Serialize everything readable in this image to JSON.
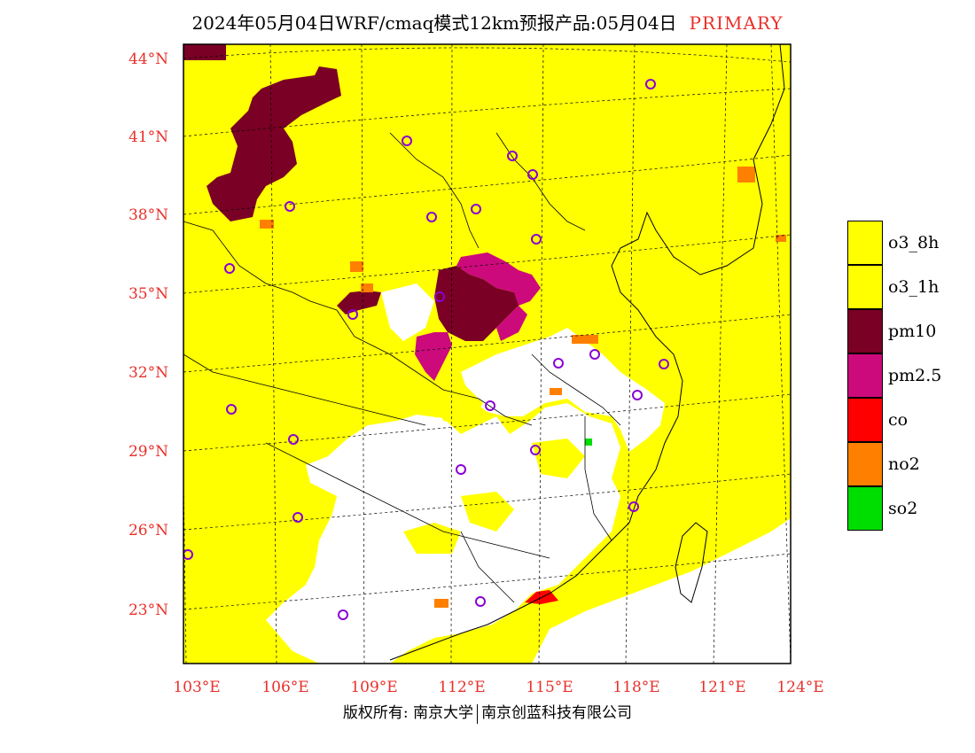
{
  "header": {
    "title": "2024年05月04日WRF/cmaq模式12km预报产品:05月04日",
    "tag": "PRIMARY"
  },
  "map": {
    "lat_labels": [
      "44°N",
      "41°N",
      "38°N",
      "35°N",
      "32°N",
      "29°N",
      "26°N",
      "23°N"
    ],
    "lon_labels": [
      "103°E",
      "106°E",
      "109°E",
      "112°E",
      "115°E",
      "118°E",
      "121°E",
      "124°E"
    ],
    "extent": {
      "lon_min": 103,
      "lon_max": 124,
      "lat_min": 21,
      "lat_max": 44.5
    },
    "colors": {
      "o3": "#ffff00",
      "pm10": "#7a0026",
      "pm25": "#cc0a7c",
      "co": "#ff0000",
      "no2": "#ff7f00",
      "so2": "#00dd00",
      "background": "#ffffff",
      "station_marker": "#8a00d4"
    }
  },
  "legend": {
    "items": [
      {
        "label": "o3_8h",
        "color": "#ffff00"
      },
      {
        "label": "o3_1h",
        "color": "#ffff00"
      },
      {
        "label": "pm10",
        "color": "#7a0026"
      },
      {
        "label": "pm2.5",
        "color": "#cc0a7c"
      },
      {
        "label": "co",
        "color": "#ff0000"
      },
      {
        "label": "no2",
        "color": "#ff7f00"
      },
      {
        "label": "so2",
        "color": "#00dd00"
      }
    ]
  },
  "footer": {
    "left": "版权所有: 南京大学",
    "right": "南京创蓝科技有限公司"
  }
}
